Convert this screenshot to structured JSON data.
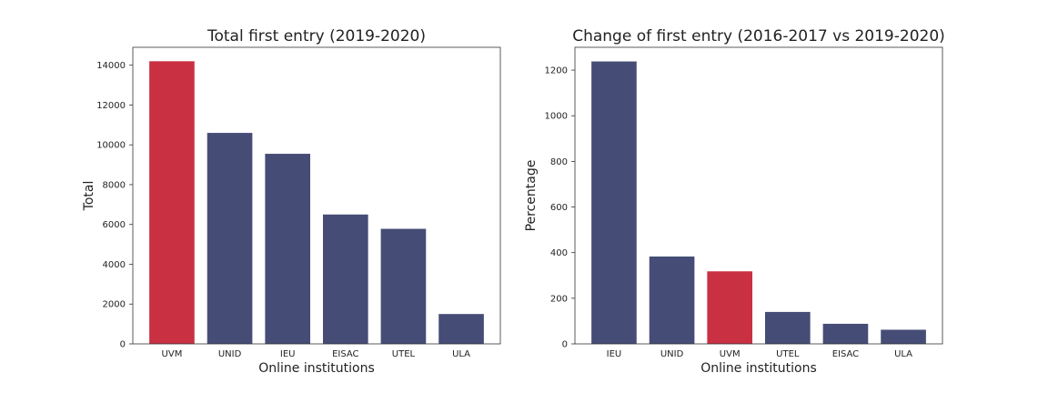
{
  "chart_data": [
    {
      "type": "bar",
      "title": "Total first entry (2019-2020)",
      "xlabel": "Online institutions",
      "ylabel": "Total",
      "categories": [
        "UVM",
        "UNID",
        "IEU",
        "EISAC",
        "UTEL",
        "ULA"
      ],
      "values": [
        14200,
        10600,
        9550,
        6500,
        5780,
        1500
      ],
      "bar_colors": [
        "#c93042",
        "#454d76",
        "#454d76",
        "#454d76",
        "#454d76",
        "#454d76"
      ],
      "ylim": [
        0,
        14900
      ],
      "yticks": [
        0,
        2000,
        4000,
        6000,
        8000,
        10000,
        12000,
        14000
      ],
      "grid": false,
      "legend": "none"
    },
    {
      "type": "bar",
      "title": "Change of first entry (2016-2017 vs 2019-2020)",
      "xlabel": "Online institutions",
      "ylabel": "Percentage",
      "categories": [
        "IEU",
        "UNID",
        "UVM",
        "UTEL",
        "EISAC",
        "ULA"
      ],
      "values": [
        1238,
        383,
        318,
        140,
        88,
        62
      ],
      "bar_colors": [
        "#454d76",
        "#454d76",
        "#c93042",
        "#454d76",
        "#454d76",
        "#454d76"
      ],
      "ylim": [
        0,
        1300
      ],
      "yticks": [
        0,
        200,
        400,
        600,
        800,
        1000,
        1200
      ],
      "grid": false,
      "legend": "none"
    }
  ]
}
